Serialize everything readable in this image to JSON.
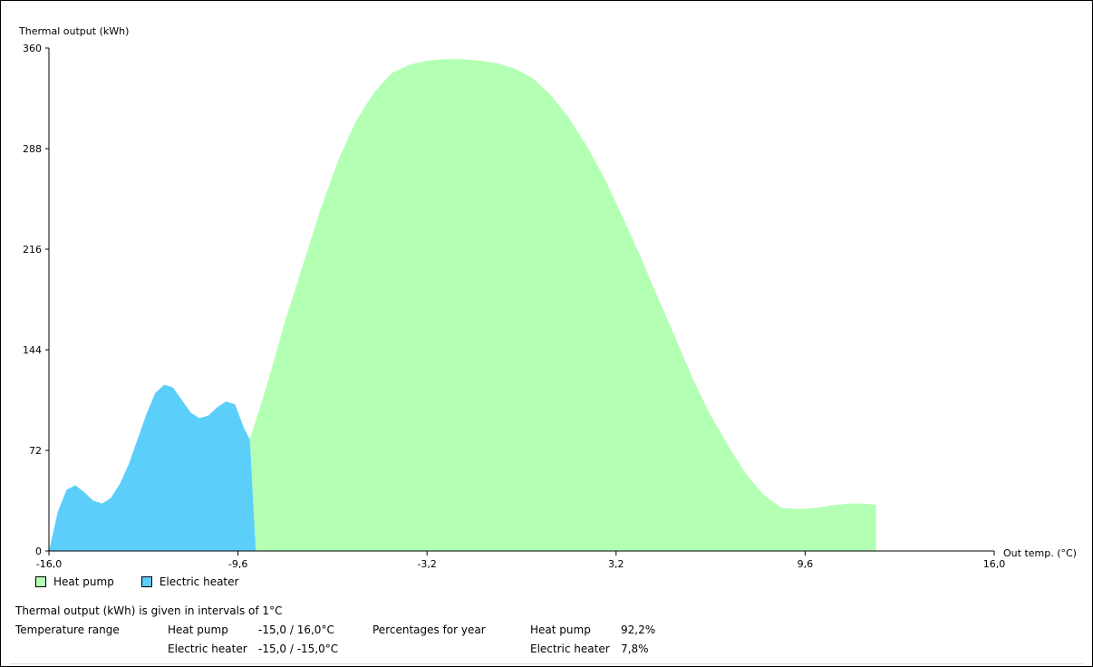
{
  "chart_data": {
    "type": "area",
    "ylabel": "Thermal output (kWh)",
    "xlabel": "Out temp. (°C)",
    "xlim": [
      -16.0,
      16.0
    ],
    "ylim": [
      0,
      360
    ],
    "x_ticks": [
      "-16,0",
      "-9,6",
      "-3,2",
      "3,2",
      "9,6",
      "16,0"
    ],
    "x_tick_values": [
      -16.0,
      -9.6,
      -3.2,
      3.2,
      9.6,
      16.0
    ],
    "y_ticks": [
      "0",
      "72",
      "144",
      "216",
      "288",
      "360"
    ],
    "y_tick_values": [
      0,
      72,
      144,
      216,
      288,
      360
    ],
    "grid": false,
    "legend_position": "bottom-left",
    "series": [
      {
        "name": "Heat pump",
        "color": "#b3ffb3",
        "points": [
          [
            -9.0,
            0
          ],
          [
            -9.2,
            80
          ],
          [
            -8.6,
            120
          ],
          [
            -8.0,
            165
          ],
          [
            -7.4,
            205
          ],
          [
            -6.8,
            245
          ],
          [
            -6.2,
            280
          ],
          [
            -5.6,
            308
          ],
          [
            -5.0,
            328
          ],
          [
            -4.4,
            342
          ],
          [
            -3.8,
            348
          ],
          [
            -3.2,
            351
          ],
          [
            -2.6,
            352
          ],
          [
            -2.0,
            352
          ],
          [
            -1.4,
            351
          ],
          [
            -0.8,
            349
          ],
          [
            -0.2,
            345
          ],
          [
            0.4,
            338
          ],
          [
            1.0,
            326
          ],
          [
            1.6,
            310
          ],
          [
            2.2,
            290
          ],
          [
            2.8,
            267
          ],
          [
            3.4,
            240
          ],
          [
            4.0,
            212
          ],
          [
            4.6,
            182
          ],
          [
            5.2,
            153
          ],
          [
            5.8,
            123
          ],
          [
            6.4,
            97
          ],
          [
            7.0,
            75
          ],
          [
            7.6,
            55
          ],
          [
            8.2,
            40
          ],
          [
            8.8,
            31
          ],
          [
            9.4,
            30
          ],
          [
            10.0,
            31
          ],
          [
            10.6,
            33
          ],
          [
            11.2,
            34
          ],
          [
            11.6,
            34
          ],
          [
            12.0,
            33
          ],
          [
            12.0,
            0
          ]
        ]
      },
      {
        "name": "Electric heater",
        "color": "#5bcefa",
        "points": [
          [
            -16.0,
            0
          ],
          [
            -15.7,
            28
          ],
          [
            -15.4,
            44
          ],
          [
            -15.1,
            47
          ],
          [
            -14.8,
            42
          ],
          [
            -14.5,
            36
          ],
          [
            -14.2,
            34
          ],
          [
            -13.9,
            38
          ],
          [
            -13.6,
            48
          ],
          [
            -13.3,
            62
          ],
          [
            -13.0,
            80
          ],
          [
            -12.7,
            98
          ],
          [
            -12.4,
            113
          ],
          [
            -12.1,
            119
          ],
          [
            -11.8,
            117
          ],
          [
            -11.5,
            108
          ],
          [
            -11.2,
            99
          ],
          [
            -10.9,
            95
          ],
          [
            -10.6,
            97
          ],
          [
            -10.3,
            103
          ],
          [
            -10.0,
            107
          ],
          [
            -9.7,
            105
          ],
          [
            -9.4,
            88
          ],
          [
            -9.2,
            80
          ],
          [
            -9.1,
            40
          ],
          [
            -9.0,
            0
          ]
        ]
      }
    ]
  },
  "legend": {
    "heat_pump_label": "Heat pump",
    "electric_heater_label": "Electric heater",
    "heat_pump_color": "#b3ffb3",
    "electric_heater_color": "#5bcefa"
  },
  "info": {
    "intervals_note": "Thermal output (kWh) is given in intervals of 1°C",
    "temperature_range_label": "Temperature range",
    "hp_label": "Heat pump",
    "hp_range": "-15,0 / 16,0°C",
    "eh_label": "Electric heater",
    "eh_range": "-15,0 / -15,0°C",
    "percentages_label": "Percentages for year",
    "hp_pct_label": "Heat pump",
    "hp_pct": "92,2%",
    "eh_pct_label": "Electric heater",
    "eh_pct": "7,8%"
  }
}
